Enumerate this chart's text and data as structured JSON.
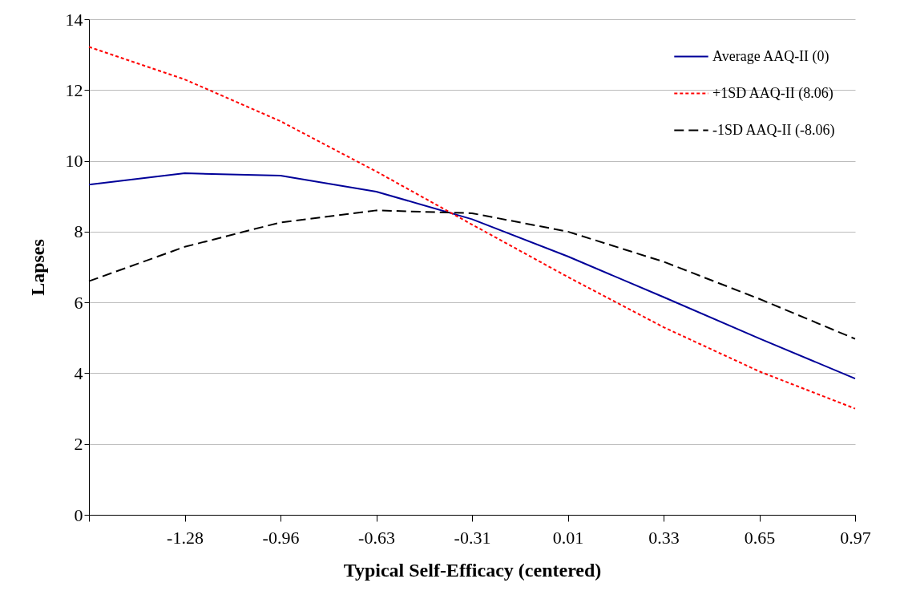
{
  "chart_data": {
    "type": "line",
    "xlabel": "Typical Self-Efficacy (centered)",
    "ylabel": "Lapses",
    "categories": [
      null,
      "-1.28",
      "-0.96",
      "-0.63",
      "-0.31",
      "0.01",
      "0.33",
      "0.65",
      "0.97"
    ],
    "series": [
      {
        "name": "Average AAQ-II (0)",
        "color": "#000099",
        "line_style": "solid",
        "values": [
          9.33,
          9.65,
          9.58,
          9.13,
          8.35,
          7.3,
          6.15,
          4.98,
          3.85
        ]
      },
      {
        "name": "+1SD AAQ-II (8.06)",
        "color": "#ff0000",
        "line_style": "dotted",
        "values": [
          13.22,
          12.3,
          11.12,
          9.7,
          8.2,
          6.72,
          5.3,
          4.05,
          3.0
        ]
      },
      {
        "name": "-1SD AAQ-II (-8.06)",
        "color": "#000000",
        "line_style": "dashed",
        "values": [
          6.6,
          7.57,
          8.26,
          8.6,
          8.52,
          8.0,
          7.15,
          6.1,
          4.97
        ]
      }
    ],
    "ylim": [
      0,
      14
    ],
    "yticks": [
      0,
      2,
      4,
      6,
      8,
      10,
      12,
      14
    ],
    "grid": "y",
    "legend": "top right",
    "marker": "none"
  }
}
